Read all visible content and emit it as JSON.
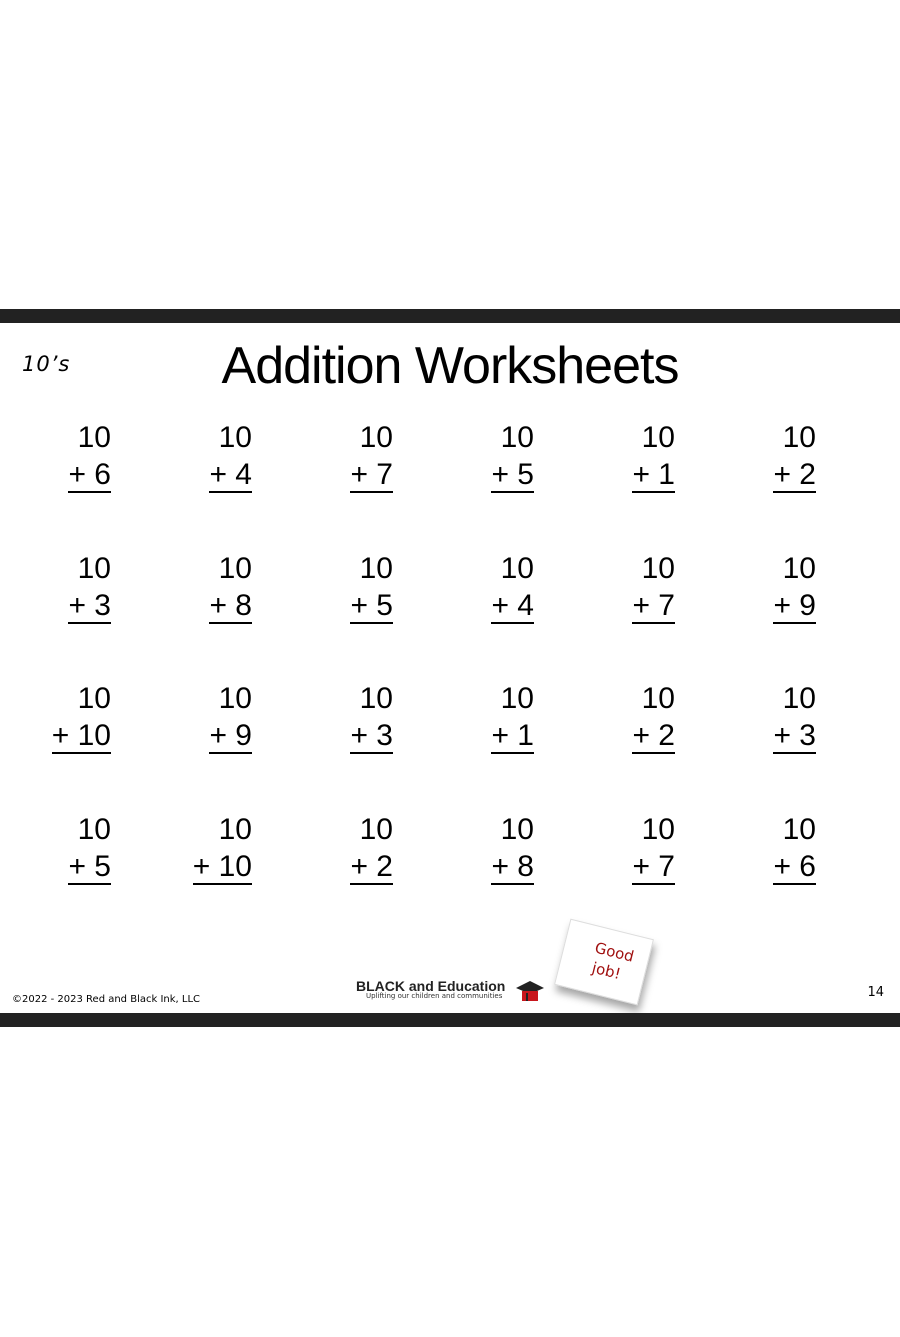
{
  "header": {
    "tag": "10’s",
    "title": "Addition Worksheets"
  },
  "problems": [
    {
      "top": "10",
      "bottom": "+ 6"
    },
    {
      "top": "10",
      "bottom": "+ 4"
    },
    {
      "top": "10",
      "bottom": "+ 7"
    },
    {
      "top": "10",
      "bottom": "+ 5"
    },
    {
      "top": "10",
      "bottom": "+ 1"
    },
    {
      "top": "10",
      "bottom": "+ 2"
    },
    {
      "top": "10",
      "bottom": "+ 3"
    },
    {
      "top": "10",
      "bottom": "+ 8"
    },
    {
      "top": "10",
      "bottom": "+ 5"
    },
    {
      "top": "10",
      "bottom": "+ 4"
    },
    {
      "top": "10",
      "bottom": "+ 7"
    },
    {
      "top": "10",
      "bottom": "+ 9"
    },
    {
      "top": "10",
      "bottom": "+ 10"
    },
    {
      "top": "10",
      "bottom": "+ 9"
    },
    {
      "top": "10",
      "bottom": "+ 3"
    },
    {
      "top": "10",
      "bottom": "+ 1"
    },
    {
      "top": "10",
      "bottom": "+ 2"
    },
    {
      "top": "10",
      "bottom": "+ 3"
    },
    {
      "top": "10",
      "bottom": "+ 5"
    },
    {
      "top": "10",
      "bottom": "+ 10"
    },
    {
      "top": "10",
      "bottom": "+ 2"
    },
    {
      "top": "10",
      "bottom": "+ 8"
    },
    {
      "top": "10",
      "bottom": "+ 7"
    },
    {
      "top": "10",
      "bottom": "+ 6"
    }
  ],
  "footer": {
    "copyright": "©2022 - 2023 Red and Black Ink, LLC",
    "logo_name": "BLACK and Education",
    "logo_tagline": "Uplifting our children and communities",
    "sticker_line1": "Good",
    "sticker_line2": "job!",
    "page_number": "14"
  },
  "colors": {
    "bar": "#222222",
    "sticker_text": "#a01010",
    "logo_cap": "#c8161d"
  }
}
